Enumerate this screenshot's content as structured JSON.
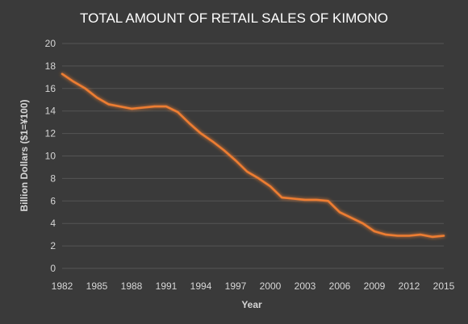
{
  "chart_data": {
    "type": "line",
    "title": "TOTAL AMOUNT OF RETAIL SALES OF KIMONO",
    "xlabel": "Year",
    "ylabel": "Billion Dollars  ($1=¥100)",
    "xlim": [
      1982,
      2015
    ],
    "ylim": [
      0,
      20
    ],
    "y_ticks": [
      "0",
      "2",
      "4",
      "6",
      "8",
      "10",
      "12",
      "14",
      "16",
      "18",
      "20"
    ],
    "x_ticks": [
      "1982",
      "1985",
      "1988",
      "1991",
      "1994",
      "1997",
      "2000",
      "2003",
      "2006",
      "2009",
      "2012",
      "2015"
    ],
    "grid": true,
    "line_color": "#ed7d31",
    "series": [
      {
        "x": [
          1982,
          1983,
          1984,
          1985,
          1986,
          1987,
          1988,
          1989,
          1990,
          1991,
          1992,
          1993,
          1994,
          1995,
          1996,
          1997,
          1998,
          1999,
          2000,
          2001,
          2002,
          2003,
          2004,
          2005,
          2006,
          2007,
          2008,
          2009,
          2010,
          2011,
          2012,
          2013,
          2014,
          2015
        ],
        "values": [
          17.3,
          16.6,
          16.0,
          15.2,
          14.6,
          14.4,
          14.2,
          14.3,
          14.4,
          14.4,
          13.9,
          12.9,
          12.0,
          11.3,
          10.5,
          9.6,
          8.6,
          8.0,
          7.3,
          6.3,
          6.2,
          6.1,
          6.1,
          6.0,
          5.0,
          4.5,
          4.0,
          3.3,
          3.0,
          2.9,
          2.9,
          3.0,
          2.8,
          2.9
        ]
      }
    ]
  }
}
